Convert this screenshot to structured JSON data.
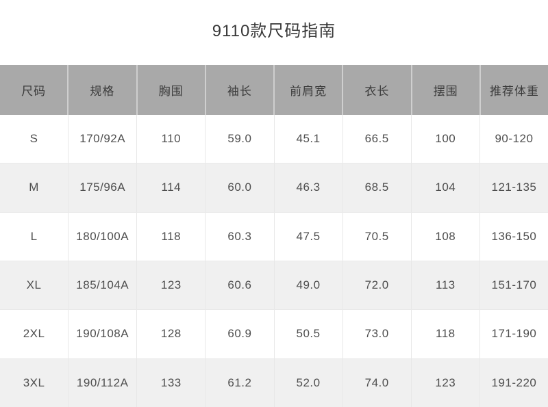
{
  "page": {
    "title": "9110款尺码指南"
  },
  "colors": {
    "header_bg": "#a9a9a9",
    "header_text": "#3b3b3b",
    "row_bg": "#ffffff",
    "row_alt_bg": "#f0f0f0",
    "body_text": "#4e4e4e"
  },
  "chart_data": {
    "type": "table",
    "title": "9110款尺码指南",
    "columns": [
      "尺码",
      "规格",
      "胸围",
      "袖长",
      "前肩宽",
      "衣长",
      "摆围",
      "推荐体重"
    ],
    "rows": [
      [
        "S",
        "170/92A",
        "110",
        "59.0",
        "45.1",
        "66.5",
        "100",
        "90-120"
      ],
      [
        "M",
        "175/96A",
        "114",
        "60.0",
        "46.3",
        "68.5",
        "104",
        "121-135"
      ],
      [
        "L",
        "180/100A",
        "118",
        "60.3",
        "47.5",
        "70.5",
        "108",
        "136-150"
      ],
      [
        "XL",
        "185/104A",
        "123",
        "60.6",
        "49.0",
        "72.0",
        "113",
        "151-170"
      ],
      [
        "2XL",
        "190/108A",
        "128",
        "60.9",
        "50.5",
        "73.0",
        "118",
        "171-190"
      ],
      [
        "3XL",
        "190/112A",
        "133",
        "61.2",
        "52.0",
        "74.0",
        "123",
        "191-220"
      ]
    ]
  }
}
